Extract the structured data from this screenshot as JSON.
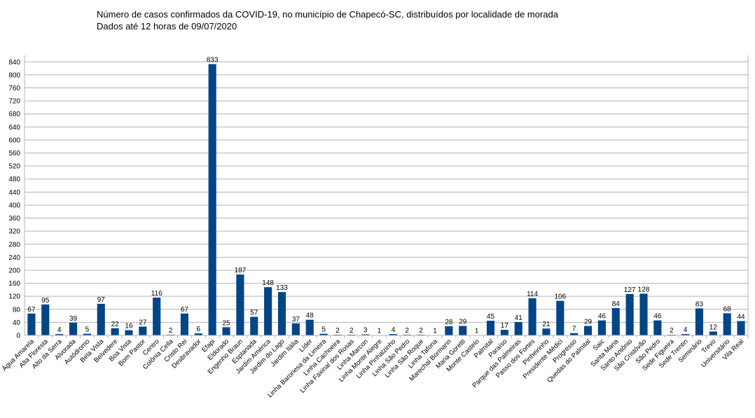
{
  "chart_data": {
    "type": "bar",
    "title": "Número de casos confirmados da COVID-19, no município de Chapecó-SC, distribuídos por localidade de morada",
    "subtitle": "Dados até 12 horas de 09/07/2020",
    "ylim": [
      0,
      860
    ],
    "yticks": [
      0,
      40,
      80,
      120,
      160,
      200,
      240,
      280,
      320,
      360,
      400,
      440,
      480,
      520,
      560,
      600,
      640,
      680,
      720,
      760,
      800,
      840
    ],
    "grid": true,
    "bar_color": "#004586",
    "categories": [
      "Água Amarela",
      "Alta Floresta",
      "Alto da Serra",
      "Alvorada",
      "Autódromo",
      "Bela Vista",
      "Belvedere",
      "Boa Vista",
      "Bom Pastor",
      "Centro",
      "Colônia Cella",
      "Cristo Rei",
      "Desbravador",
      "Efapi",
      "Eldorado",
      "Engenho Braun",
      "Esplanada",
      "Jardim América",
      "Jardim do Lago",
      "Jardim Itália",
      "Líder",
      "Linha Baronesa da Limeira",
      "Linha Cachoeira",
      "Linha Faxinal dos Rosas",
      "Linha Marcon",
      "Linha Monte Alegre",
      "Linha Pinhalzinho",
      "Linha São Pedro",
      "Linha São Roque",
      "Linha Tafona",
      "Marechal Bormann",
      "Maria Goretti",
      "Monte Castelo",
      "Palmital",
      "Paraíso",
      "Parque das Palmeiras",
      "Passo dos Fortes",
      "Pinheirinho",
      "Presidente Médici",
      "Progresso",
      "Quedas do Palmital",
      "Saic",
      "Santa Maria",
      "Santo Antônio",
      "São Cristóvão",
      "São Pedro",
      "Sede Figueira",
      "Sede Trentin",
      "Seminário",
      "Trevo",
      "Universitário",
      "Vila Real"
    ],
    "values": [
      67,
      95,
      4,
      39,
      5,
      97,
      22,
      16,
      27,
      116,
      2,
      67,
      6,
      833,
      25,
      187,
      57,
      148,
      133,
      37,
      48,
      5,
      2,
      2,
      3,
      1,
      4,
      2,
      2,
      1,
      28,
      29,
      1,
      45,
      17,
      41,
      114,
      21,
      106,
      7,
      29,
      46,
      84,
      127,
      128,
      46,
      2,
      4,
      83,
      12,
      68,
      44
    ]
  }
}
